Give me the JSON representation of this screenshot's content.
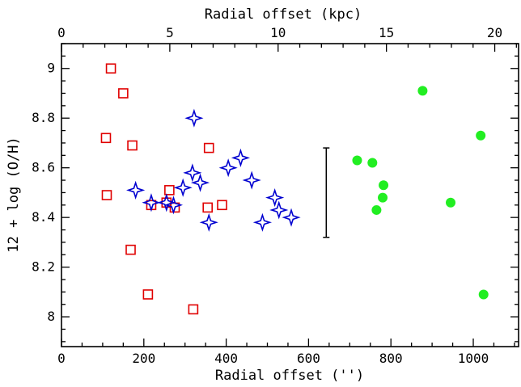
{
  "chart_data": {
    "type": "scatter",
    "title": "",
    "xlabel": "Radial offset ('')",
    "ylabel": "12 + log (O/H)",
    "top_xlabel": "Radial offset (kpc)",
    "xlim": [
      0,
      1110
    ],
    "ylim": [
      7.88,
      9.1
    ],
    "top_xlim": [
      0,
      21.1
    ],
    "x_ticks": [
      0,
      200,
      400,
      600,
      800,
      1000
    ],
    "x_tick_labels": [
      "0",
      "200",
      "400",
      "600",
      "800",
      "1000"
    ],
    "y_ticks": [
      8.0,
      8.2,
      8.4,
      8.6,
      8.8,
      9.0
    ],
    "y_tick_labels": [
      "8",
      "8.2",
      "8.4",
      "8.6",
      "8.8",
      "9"
    ],
    "top_ticks": [
      0,
      5,
      10,
      15,
      20
    ],
    "top_tick_labels": [
      "0",
      "5",
      "10",
      "15",
      "20"
    ],
    "grid": false,
    "series": [
      {
        "marker": "open-square",
        "color": "#e00000",
        "points": [
          {
            "x": 120,
            "y": 9.0
          },
          {
            "x": 150,
            "y": 8.9
          },
          {
            "x": 108,
            "y": 8.72
          },
          {
            "x": 172,
            "y": 8.69
          },
          {
            "x": 110,
            "y": 8.49
          },
          {
            "x": 168,
            "y": 8.27
          },
          {
            "x": 210,
            "y": 8.09
          },
          {
            "x": 218,
            "y": 8.45
          },
          {
            "x": 255,
            "y": 8.46
          },
          {
            "x": 262,
            "y": 8.51
          },
          {
            "x": 275,
            "y": 8.44
          },
          {
            "x": 320,
            "y": 8.03
          },
          {
            "x": 358,
            "y": 8.68
          },
          {
            "x": 355,
            "y": 8.44
          },
          {
            "x": 390,
            "y": 8.45
          }
        ]
      },
      {
        "marker": "open-four-point-star",
        "color": "#0000d0",
        "points": [
          {
            "x": 180,
            "y": 8.51
          },
          {
            "x": 218,
            "y": 8.46
          },
          {
            "x": 255,
            "y": 8.46
          },
          {
            "x": 272,
            "y": 8.45
          },
          {
            "x": 295,
            "y": 8.52
          },
          {
            "x": 318,
            "y": 8.58
          },
          {
            "x": 322,
            "y": 8.8
          },
          {
            "x": 337,
            "y": 8.54
          },
          {
            "x": 358,
            "y": 8.38
          },
          {
            "x": 405,
            "y": 8.6
          },
          {
            "x": 435,
            "y": 8.64
          },
          {
            "x": 462,
            "y": 8.55
          },
          {
            "x": 488,
            "y": 8.38
          },
          {
            "x": 518,
            "y": 8.48
          },
          {
            "x": 528,
            "y": 8.43
          },
          {
            "x": 558,
            "y": 8.4
          }
        ]
      },
      {
        "marker": "filled-circle",
        "color": "#22ee22",
        "points": [
          {
            "x": 718,
            "y": 8.63
          },
          {
            "x": 755,
            "y": 8.62
          },
          {
            "x": 782,
            "y": 8.53
          },
          {
            "x": 780,
            "y": 8.48
          },
          {
            "x": 765,
            "y": 8.43
          },
          {
            "x": 877,
            "y": 8.91
          },
          {
            "x": 945,
            "y": 8.46
          },
          {
            "x": 1018,
            "y": 8.73
          },
          {
            "x": 1025,
            "y": 8.09
          }
        ]
      }
    ],
    "error_bar": {
      "x": 643,
      "y_low": 8.32,
      "y_high": 8.68
    }
  }
}
